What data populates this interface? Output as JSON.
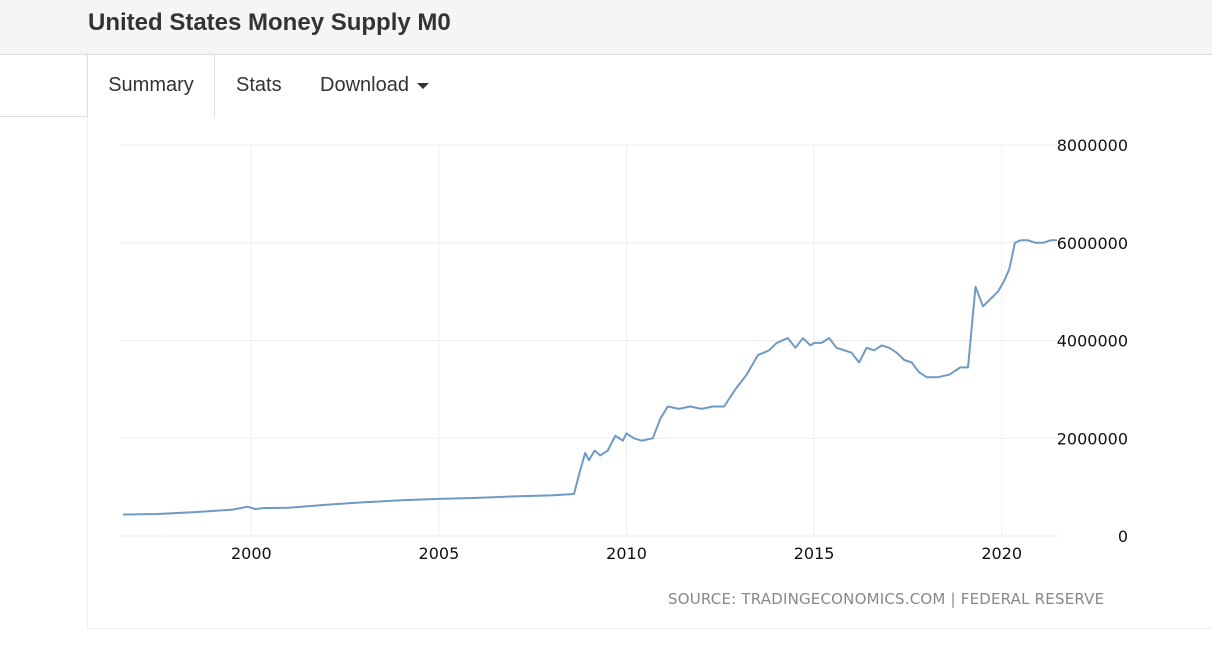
{
  "page": {
    "title": "United States Money Supply M0"
  },
  "tabs": {
    "summary": "Summary",
    "stats": "Stats",
    "download": "Download"
  },
  "source": "SOURCE: TRADINGECONOMICS.COM | FEDERAL RESERVE",
  "colors": {
    "series": "#6e9ac4",
    "grid": "#eeeeee",
    "tick_text": "#111111"
  },
  "chart_data": {
    "type": "line",
    "title": "",
    "xlabel": "",
    "ylabel": "",
    "xlim": [
      1996.5,
      2021.5
    ],
    "ylim": [
      0,
      8000000
    ],
    "x_ticks": [
      2000,
      2005,
      2010,
      2015,
      2020
    ],
    "x_tick_labels": [
      "2000",
      "2005",
      "2010",
      "2015",
      "2020"
    ],
    "y_ticks": [
      0,
      2000000,
      4000000,
      6000000,
      8000000
    ],
    "y_tick_labels": [
      "0",
      "2000000",
      "4000000",
      "6000000",
      "8000000"
    ],
    "y_axis_side": "right",
    "grid": true,
    "legend": "none",
    "series": [
      {
        "x": [
          1996.6,
          1997.5,
          1998.5,
          1999.5,
          1999.9,
          2000.1,
          2000.3,
          2001.0,
          2002.0,
          2003.0,
          2004.0,
          2005.0,
          2006.0,
          2007.0,
          2008.0,
          2008.6,
          2008.75,
          2008.9,
          2009.0,
          2009.15,
          2009.3,
          2009.5,
          2009.7,
          2009.9,
          2010.0,
          2010.2,
          2010.4,
          2010.7,
          2010.9,
          2011.1,
          2011.4,
          2011.7,
          2012.0,
          2012.3,
          2012.6,
          2012.9,
          2013.2,
          2013.5,
          2013.8,
          2014.0,
          2014.3,
          2014.5,
          2014.7,
          2014.9,
          2015.0,
          2015.2,
          2015.4,
          2015.6,
          2015.8,
          2016.0,
          2016.2,
          2016.4,
          2016.6,
          2016.8,
          2017.0,
          2017.2,
          2017.4,
          2017.6,
          2017.8,
          2018.0,
          2018.3,
          2018.6,
          2018.9,
          2019.1,
          2019.3,
          2019.5,
          2019.7,
          2019.9,
          2020.05,
          2020.2,
          2020.35,
          2020.5,
          2020.7,
          2020.9,
          2021.1,
          2021.3,
          2021.45
        ],
        "y": [
          440000,
          450000,
          490000,
          540000,
          600000,
          550000,
          570000,
          580000,
          640000,
          690000,
          730000,
          760000,
          780000,
          810000,
          830000,
          860000,
          1300000,
          1700000,
          1550000,
          1750000,
          1650000,
          1750000,
          2050000,
          1950000,
          2100000,
          2000000,
          1950000,
          2000000,
          2400000,
          2650000,
          2600000,
          2650000,
          2600000,
          2650000,
          2650000,
          3000000,
          3300000,
          3700000,
          3800000,
          3950000,
          4050000,
          3850000,
          4050000,
          3900000,
          3950000,
          3950000,
          4050000,
          3850000,
          3800000,
          3750000,
          3550000,
          3850000,
          3800000,
          3900000,
          3850000,
          3750000,
          3600000,
          3550000,
          3350000,
          3250000,
          3250000,
          3300000,
          3450000,
          3450000,
          5100000,
          4700000,
          4850000,
          5000000,
          5200000,
          5450000,
          6000000,
          6050000,
          6050000,
          6000000,
          6000000,
          6050000,
          6050000
        ]
      }
    ]
  }
}
